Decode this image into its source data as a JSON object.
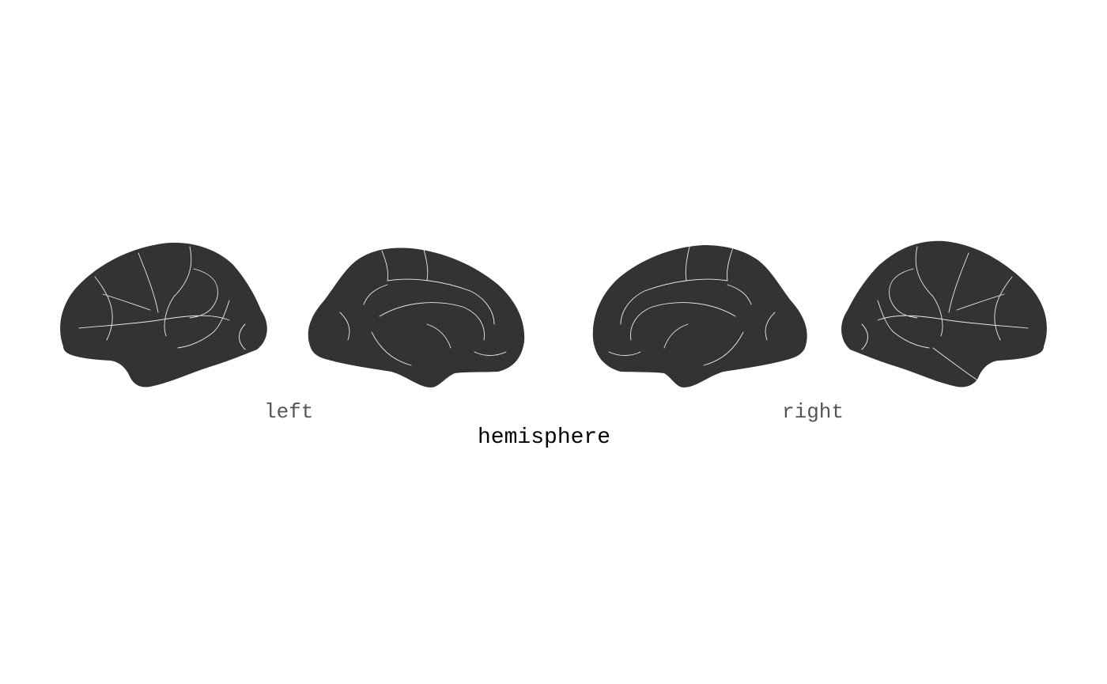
{
  "figure": {
    "hemispheres": [
      {
        "label": "left",
        "views": [
          "lateral",
          "medial"
        ]
      },
      {
        "label": "right",
        "views": [
          "medial",
          "lateral"
        ]
      }
    ],
    "axis_title": "hemisphere",
    "colors": {
      "brain_fill": "#333333",
      "region_border": "#ffffff",
      "hemisphere_label": "#555555",
      "axis_title": "#000000",
      "background": "#ffffff"
    }
  }
}
